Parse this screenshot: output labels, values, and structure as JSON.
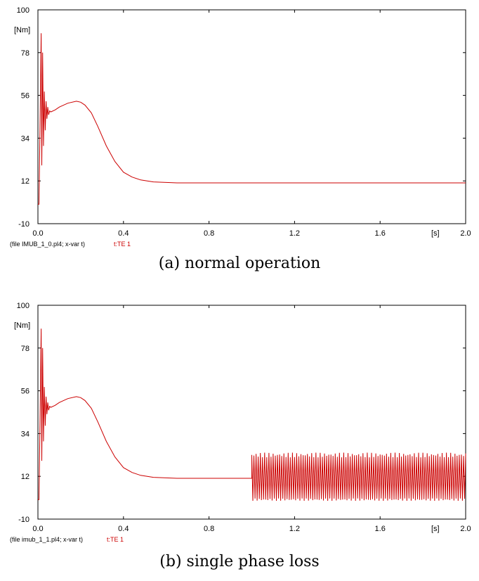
{
  "chart_data": [
    {
      "type": "line",
      "x_ticks": [
        "0.0",
        "0.4",
        "0.8",
        "1.2",
        "1.6",
        "2.0"
      ],
      "y_ticks": [
        "-10",
        "12",
        "34",
        "56",
        "78",
        "100"
      ],
      "xlim": [
        0,
        2.0
      ],
      "ylim": [
        -10,
        100
      ],
      "x_unit": "[s]",
      "y_unit": "[Nm]",
      "file_label": "(file IMUB_1_0.pl4; x-var t)",
      "series_label": "t:TE 1",
      "caption": "(a) normal operation",
      "series": [
        {
          "color": "#cc0000",
          "points": [
            [
              0.0,
              0
            ],
            [
              0.005,
              0
            ],
            [
              0.01,
              40
            ],
            [
              0.015,
              88
            ],
            [
              0.018,
              20
            ],
            [
              0.022,
              78
            ],
            [
              0.026,
              30
            ],
            [
              0.03,
              58
            ],
            [
              0.034,
              38
            ],
            [
              0.038,
              53
            ],
            [
              0.042,
              44
            ],
            [
              0.046,
              50
            ],
            [
              0.05,
              46
            ],
            [
              0.055,
              48
            ],
            [
              0.06,
              47.5
            ],
            [
              0.08,
              48.5
            ],
            [
              0.1,
              50
            ],
            [
              0.14,
              52
            ],
            [
              0.18,
              53
            ],
            [
              0.2,
              52.5
            ],
            [
              0.22,
              51
            ],
            [
              0.25,
              47
            ],
            [
              0.28,
              40
            ],
            [
              0.32,
              30
            ],
            [
              0.36,
              22
            ],
            [
              0.4,
              16.5
            ],
            [
              0.44,
              14
            ],
            [
              0.48,
              12.5
            ],
            [
              0.54,
              11.5
            ],
            [
              0.6,
              11.2
            ],
            [
              0.65,
              11
            ],
            [
              1.0,
              11
            ],
            [
              1.5,
              11
            ],
            [
              2.0,
              11
            ]
          ]
        }
      ]
    },
    {
      "type": "line",
      "x_ticks": [
        "0.0",
        "0.4",
        "0.8",
        "1.2",
        "1.6",
        "2.0"
      ],
      "y_ticks": [
        "-10",
        "12",
        "34",
        "56",
        "78",
        "100"
      ],
      "xlim": [
        0,
        2.0
      ],
      "ylim": [
        -10,
        100
      ],
      "x_unit": "[s]",
      "y_unit": "[Nm]",
      "file_label": "(file imub_1_1.pl4; x-var t)",
      "series_label": "t:TE 1",
      "caption": "(b) single phase loss",
      "series": [
        {
          "color": "#cc0000",
          "points": [
            [
              0.0,
              0
            ],
            [
              0.005,
              0
            ],
            [
              0.01,
              40
            ],
            [
              0.015,
              88
            ],
            [
              0.018,
              20
            ],
            [
              0.022,
              78
            ],
            [
              0.026,
              30
            ],
            [
              0.03,
              58
            ],
            [
              0.034,
              38
            ],
            [
              0.038,
              53
            ],
            [
              0.042,
              44
            ],
            [
              0.046,
              50
            ],
            [
              0.05,
              46
            ],
            [
              0.055,
              48
            ],
            [
              0.06,
              47.5
            ],
            [
              0.08,
              48.5
            ],
            [
              0.1,
              50
            ],
            [
              0.14,
              52
            ],
            [
              0.18,
              53
            ],
            [
              0.2,
              52.5
            ],
            [
              0.22,
              51
            ],
            [
              0.25,
              47
            ],
            [
              0.28,
              40
            ],
            [
              0.32,
              30
            ],
            [
              0.36,
              22
            ],
            [
              0.4,
              16.5
            ],
            [
              0.44,
              14
            ],
            [
              0.48,
              12.5
            ],
            [
              0.54,
              11.5
            ],
            [
              0.6,
              11.2
            ],
            [
              0.65,
              11
            ],
            [
              1.0,
              11
            ]
          ],
          "oscillation": {
            "x_start": 1.0,
            "x_end": 2.0,
            "y_min": 0,
            "y_max": 23,
            "period_s": 0.01
          }
        }
      ]
    }
  ]
}
